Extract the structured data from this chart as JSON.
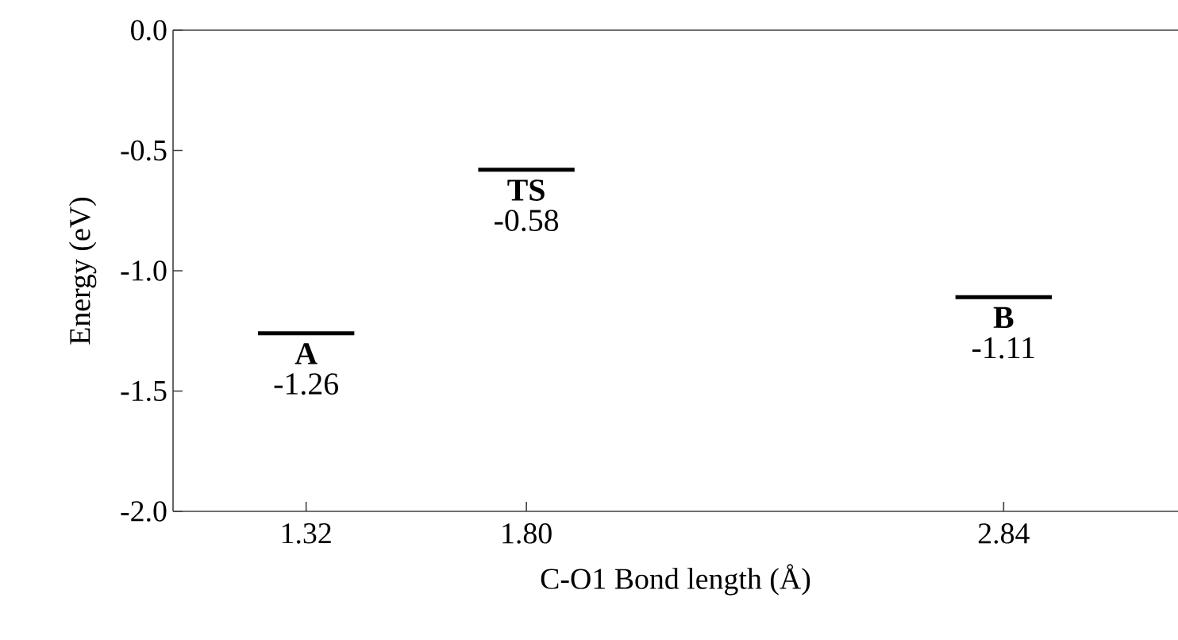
{
  "chart_data": {
    "type": "line",
    "xlabel": "C-O1 Bond length (Å)",
    "ylabel": "Energy (eV)",
    "series": [
      {
        "color": "#000000",
        "x": [
          1.215,
          1.425
        ],
        "values": [
          -1.26,
          -1.26
        ],
        "value_labels": [
          null,
          "-1.26"
        ]
      },
      {
        "color": "#000000",
        "x": [
          1.695,
          1.905
        ],
        "values": [
          -0.58,
          -0.58
        ],
        "value_labels": [
          null,
          "-0.58"
        ]
      },
      {
        "color": "#000000",
        "x": [
          2.735,
          2.945
        ],
        "values": [
          -1.11,
          -1.11
        ],
        "value_labels": [
          null,
          "-1.11"
        ]
      }
    ],
    "annotations": [
      {
        "text": "A",
        "x": 1.32,
        "y": -1.26
      },
      {
        "text": "TS",
        "x": 1.8,
        "y": -0.58
      },
      {
        "text": "B",
        "x": 2.84,
        "y": -1.11
      }
    ],
    "xlim": [
      1.03,
      3.22
    ],
    "xticks": [
      {
        "value": 1.32,
        "label": "1.32"
      },
      {
        "value": 1.8,
        "label": "1.80"
      },
      {
        "value": 2.84,
        "label": "2.84"
      }
    ],
    "ylim": [
      -2.0,
      0.0
    ],
    "yticks": [
      {
        "value": -2.0,
        "label": "-2.0"
      },
      -1.5,
      {
        "value": -1.0,
        "label": "-1.0"
      },
      -0.5,
      {
        "value": 0.0,
        "label": "0.0"
      }
    ],
    "marker": "none"
  }
}
